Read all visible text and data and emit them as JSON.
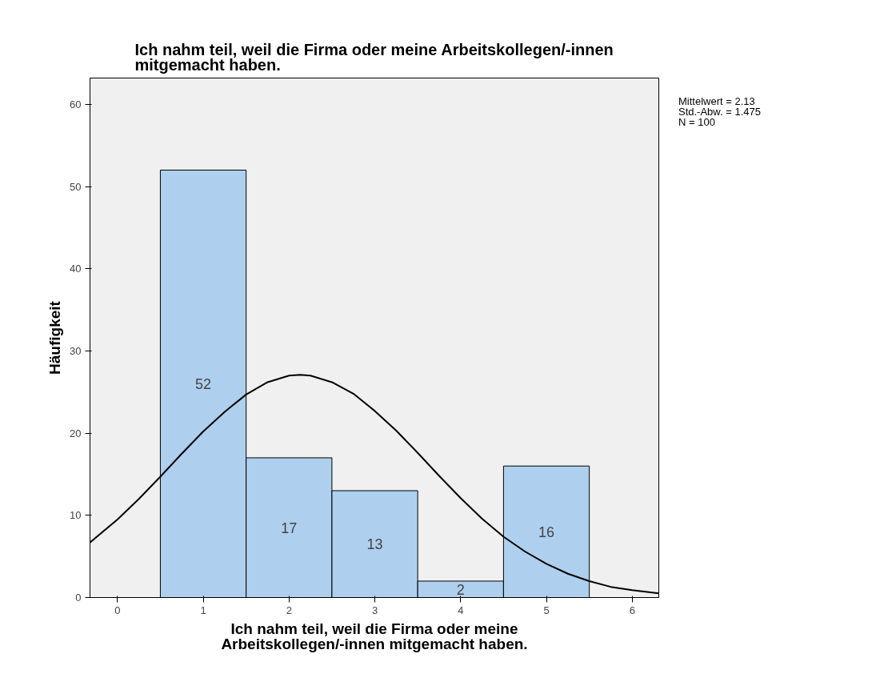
{
  "chart_data": {
    "type": "histogram",
    "title": "Ich nahm teil, weil die Firma oder meine Arbeitskollegen/-innen mitgemacht haben.",
    "xlabel": "Ich nahm teil, weil die Firma oder meine Arbeitskollegen/-innen mitgemacht haben.",
    "ylabel": "Häufigkeit",
    "annotations": [
      "Mittelwert = 2.13",
      "Std.-Abw. = 1.475",
      "N = 100"
    ],
    "xlim": [
      -0.32,
      6.31
    ],
    "ylim": [
      0,
      63.2
    ],
    "xticks": [
      0,
      1,
      2,
      3,
      4,
      5,
      6
    ],
    "yticks": [
      0,
      10,
      20,
      30,
      40,
      50,
      60
    ],
    "grid": false,
    "series": [
      {
        "color": "#aecfee",
        "bins": [
          0.5,
          1.5,
          2.5,
          3.5,
          4.5,
          5.5
        ],
        "values": [
          52,
          17,
          13,
          2,
          16
        ],
        "value_labels": [
          "52",
          "17",
          "13",
          "2",
          "16"
        ]
      },
      {
        "type": "line",
        "color": "#000000",
        "x": [
          -0.32,
          0,
          0.25,
          0.5,
          0.75,
          1,
          1.25,
          1.5,
          1.75,
          2,
          2.13,
          2.25,
          2.5,
          2.75,
          3,
          3.25,
          3.5,
          3.75,
          4,
          4.25,
          4.5,
          4.75,
          5,
          5.25,
          5.5,
          5.75,
          6,
          6.31
        ],
        "values": [
          6.7,
          9.5,
          12.0,
          14.7,
          17.5,
          20.2,
          22.6,
          24.7,
          26.2,
          27.0,
          27.1,
          27.0,
          26.2,
          24.8,
          22.7,
          20.3,
          17.6,
          14.8,
          12.1,
          9.6,
          7.4,
          5.6,
          4.1,
          2.9,
          2.0,
          1.3,
          0.9,
          0.5
        ]
      }
    ]
  }
}
